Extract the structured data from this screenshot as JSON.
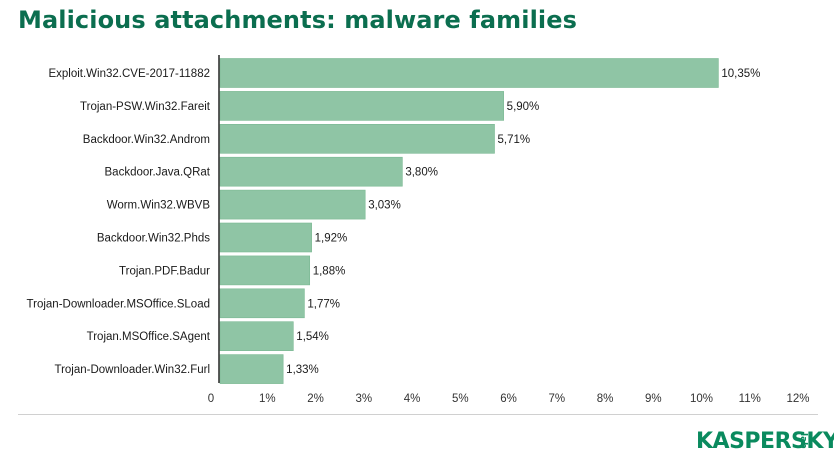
{
  "title": "Malicious attachments: malware families",
  "logo": {
    "wordmark": "KASPERSKY",
    "sub": "lab"
  },
  "colors": {
    "title": "#0b6e4f",
    "bar": "#8fc5a5",
    "bar_stroke": "#7ab892",
    "logo": "#0a8a5e"
  },
  "chart_data": {
    "type": "bar",
    "orientation": "horizontal",
    "title": "Malicious attachments: malware families",
    "xlabel": "",
    "ylabel": "",
    "xlim": [
      0,
      12
    ],
    "grid": false,
    "categories": [
      "Exploit.Win32.CVE-2017-11882",
      "Trojan-PSW.Win32.Fareit",
      "Backdoor.Win32.Androm",
      "Backdoor.Java.QRat",
      "Worm.Win32.WBVB",
      "Backdoor.Win32.Phds",
      "Trojan.PDF.Badur",
      "Trojan-Downloader.MSOffice.SLoad",
      "Trojan.MSOffice.SAgent",
      "Trojan-Downloader.Win32.Furl"
    ],
    "values": [
      10.35,
      5.9,
      5.71,
      3.8,
      3.03,
      1.92,
      1.88,
      1.77,
      1.54,
      1.33
    ],
    "value_labels": [
      "10,35%",
      "5,90%",
      "5,71%",
      "3,80%",
      "3,03%",
      "1,92%",
      "1,88%",
      "1,77%",
      "1,54%",
      "1,33%"
    ],
    "x_ticks": [
      0,
      1,
      2,
      3,
      4,
      5,
      6,
      7,
      8,
      9,
      10,
      11,
      12
    ],
    "x_tick_labels": [
      "0",
      "1%",
      "2%",
      "3%",
      "4%",
      "5%",
      "6%",
      "7%",
      "8%",
      "9%",
      "10%",
      "11%",
      "12%"
    ]
  }
}
